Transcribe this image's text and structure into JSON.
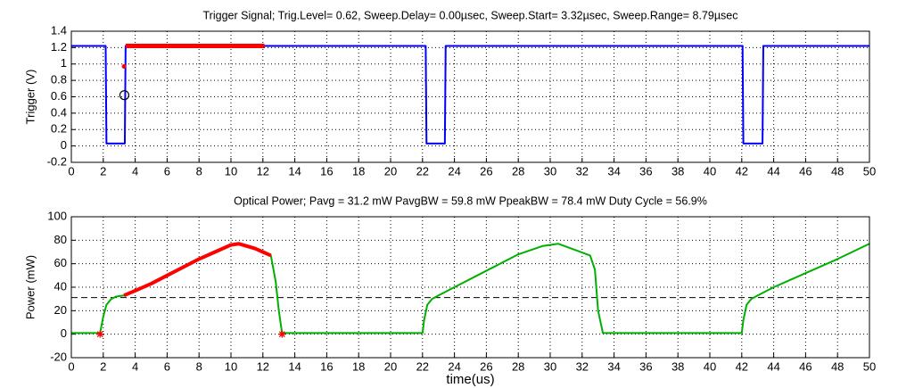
{
  "chart_data": [
    {
      "type": "line",
      "title": "Trigger Signal; Trig.Level= 0.62, Sweep.Delay= 0.00µsec, Sweep.Start= 3.32µsec, Sweep.Range= 8.79µsec",
      "y_label": "Trigger (V)",
      "xlim": [
        0,
        50
      ],
      "xticks": [
        0,
        2,
        4,
        6,
        8,
        10,
        12,
        14,
        16,
        18,
        20,
        22,
        24,
        26,
        28,
        30,
        32,
        34,
        36,
        38,
        40,
        42,
        44,
        46,
        48,
        50
      ],
      "ylim": [
        -0.2,
        1.4
      ],
      "yticks": [
        -0.2,
        0,
        0.2,
        0.4,
        0.6,
        0.8,
        1,
        1.2,
        1.4
      ],
      "grid": true,
      "series": [
        {
          "color": "#0000ff",
          "width": 2,
          "x": [
            0,
            2.15,
            2.2,
            3.35,
            3.4,
            22.2,
            22.25,
            23.4,
            23.45,
            42.05,
            42.1,
            43.3,
            43.35,
            50
          ],
          "values": [
            1.22,
            1.22,
            0.03,
            0.03,
            1.22,
            1.22,
            0.03,
            0.03,
            1.22,
            1.22,
            0.03,
            0.03,
            1.22,
            1.22
          ]
        },
        {
          "color": "#ff0000",
          "width": 5,
          "x": [
            3.4,
            12.1
          ],
          "values": [
            1.22,
            1.22
          ]
        },
        {
          "color": "#ff0000",
          "marker": "dot",
          "x": [
            3.3
          ],
          "values": [
            0.97
          ]
        },
        {
          "color": "#000000",
          "marker": "circle",
          "x": [
            3.32
          ],
          "values": [
            0.62
          ]
        }
      ]
    },
    {
      "type": "line",
      "title": "Optical Power;  Pavg = 31.2 mW  PavgBW = 59.8 mW PpeakBW = 78.4 mW Duty Cycle = 56.9%",
      "x_label": "time(us)",
      "y_label": "Power (mW)",
      "xlim": [
        0,
        50
      ],
      "xticks": [
        0,
        2,
        4,
        6,
        8,
        10,
        12,
        14,
        16,
        18,
        20,
        22,
        24,
        26,
        28,
        30,
        32,
        34,
        36,
        38,
        40,
        42,
        44,
        46,
        48,
        50
      ],
      "ylim": [
        -20,
        100
      ],
      "yticks": [
        -20,
        0,
        20,
        40,
        60,
        80,
        100
      ],
      "grid": true,
      "hlines": [
        {
          "value": 31.2,
          "color": "#000000"
        }
      ],
      "series": [
        {
          "color": "#00b000",
          "width": 2,
          "x": [
            0,
            1.8,
            2.0,
            2.2,
            2.5,
            2.8,
            3.3,
            4,
            5,
            6,
            7,
            8,
            9,
            10,
            10.5,
            11,
            11.5,
            12,
            12.5,
            12.8,
            13.0,
            13.2,
            22,
            22.1,
            22.3,
            22.6,
            23,
            24,
            26,
            28,
            29.5,
            30.5,
            31.5,
            32.5,
            32.8,
            33.0,
            33.3,
            42,
            42.1,
            42.3,
            42.6,
            43,
            44,
            46,
            48,
            50
          ],
          "values": [
            1,
            1,
            15,
            25,
            30,
            32,
            33,
            37,
            43,
            50,
            57,
            64,
            70,
            76,
            77,
            75,
            73,
            70,
            67,
            45,
            20,
            1,
            1,
            12,
            25,
            30,
            33,
            40,
            54,
            68,
            75,
            77,
            72,
            67,
            55,
            20,
            1,
            1,
            12,
            25,
            30,
            33,
            40,
            52,
            64,
            77
          ]
        },
        {
          "color": "#ff0000",
          "width": 4,
          "x": [
            3.3,
            4,
            5,
            6,
            7,
            8,
            9,
            10,
            10.5,
            11,
            11.5,
            12,
            12.5
          ],
          "values": [
            33,
            37,
            43,
            50,
            57,
            64,
            70,
            76,
            77,
            75,
            73,
            70,
            67
          ]
        },
        {
          "color": "#ff0000",
          "marker": "star",
          "x": [
            1.8,
            13.2
          ],
          "values": [
            0,
            0
          ]
        }
      ]
    }
  ]
}
